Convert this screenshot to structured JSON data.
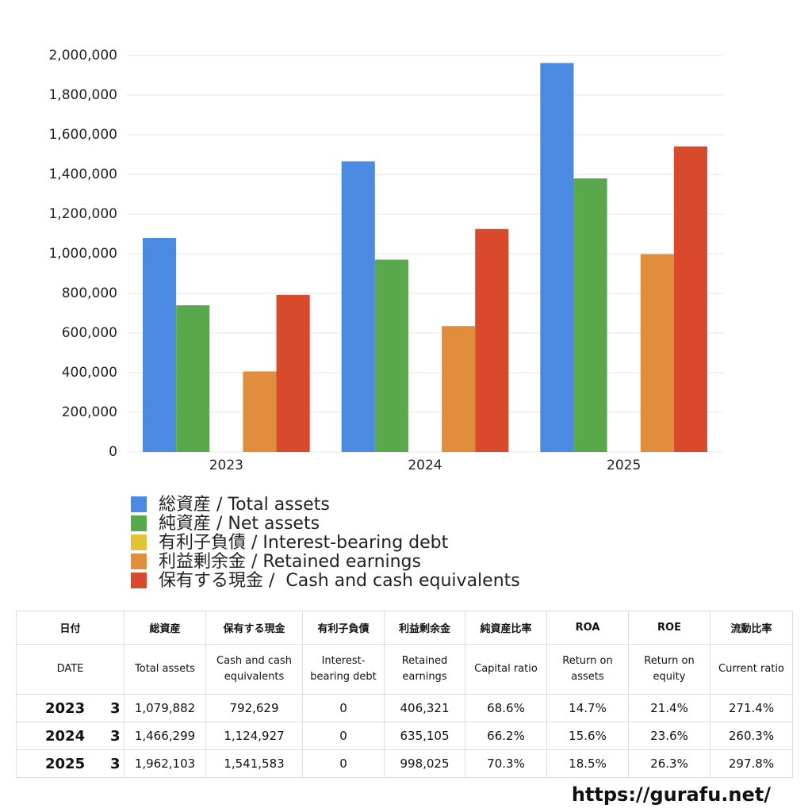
{
  "chart_data": {
    "type": "bar",
    "categories": [
      "2023",
      "2024",
      "2025"
    ],
    "series": [
      {
        "name": "総資産 / Total assets",
        "color": "#4a8ae2",
        "values": [
          1079882,
          1466299,
          1962103
        ]
      },
      {
        "name": "純資産 / Net assets",
        "color": "#5aa84c",
        "values": [
          740000,
          970000,
          1380000
        ]
      },
      {
        "name": "有利子負債 / Interest-bearing debt",
        "color": "#e2c235",
        "values": [
          0,
          0,
          0
        ]
      },
      {
        "name": "利益剰余金 / Retained earnings",
        "color": "#e08d3c",
        "values": [
          406321,
          635105,
          998025
        ]
      },
      {
        "name": "保有する現金 /  Cash and cash equivalents",
        "color": "#d9492b",
        "values": [
          792629,
          1124927,
          1541583
        ]
      }
    ],
    "ylim": [
      0,
      2000000
    ],
    "yticks": [
      0,
      {
        "value": 200000,
        "label": "200,000"
      },
      {
        "value": 400000,
        "label": "400,000"
      },
      {
        "value": 600000,
        "label": "600,000"
      },
      {
        "value": 800000,
        "label": "800,000"
      },
      {
        "value": 1000000,
        "label": "1,000,000"
      },
      {
        "value": 1200000,
        "label": "1,200,000"
      },
      {
        "value": 1400000,
        "label": "1,400,000"
      },
      {
        "value": 1600000,
        "label": "1,600,000"
      },
      {
        "value": 1800000,
        "label": "1,800,000"
      },
      {
        "value": 2000000,
        "label": "2,000,000"
      }
    ],
    "grid": true
  },
  "table": {
    "header_ja": [
      "日付",
      "総資産",
      "保有する現金",
      "有利子負債",
      "利益剰余金",
      "純資産比率",
      "ROA",
      "ROE",
      "流動比率"
    ],
    "header_en": [
      "DATE",
      "Total assets",
      "Cash and cash equivalents",
      "Interest-bearing debt",
      "Retained earnings",
      "Capital ratio",
      "Return on assets",
      "Return on equity",
      "Current ratio"
    ],
    "rows": [
      [
        "2023",
        "3",
        "1,079,882",
        "792,629",
        "0",
        "406,321",
        "68.6%",
        "14.7%",
        "21.4%",
        "271.4%"
      ],
      [
        "2024",
        "3",
        "1,466,299",
        "1,124,927",
        "0",
        "635,105",
        "66.2%",
        "15.6%",
        "23.6%",
        "260.3%"
      ],
      [
        "2025",
        "3",
        "1,962,103",
        "1,541,583",
        "0",
        "998,025",
        "70.3%",
        "18.5%",
        "26.3%",
        "297.8%"
      ]
    ]
  },
  "footer": "https://gurafu.net/"
}
